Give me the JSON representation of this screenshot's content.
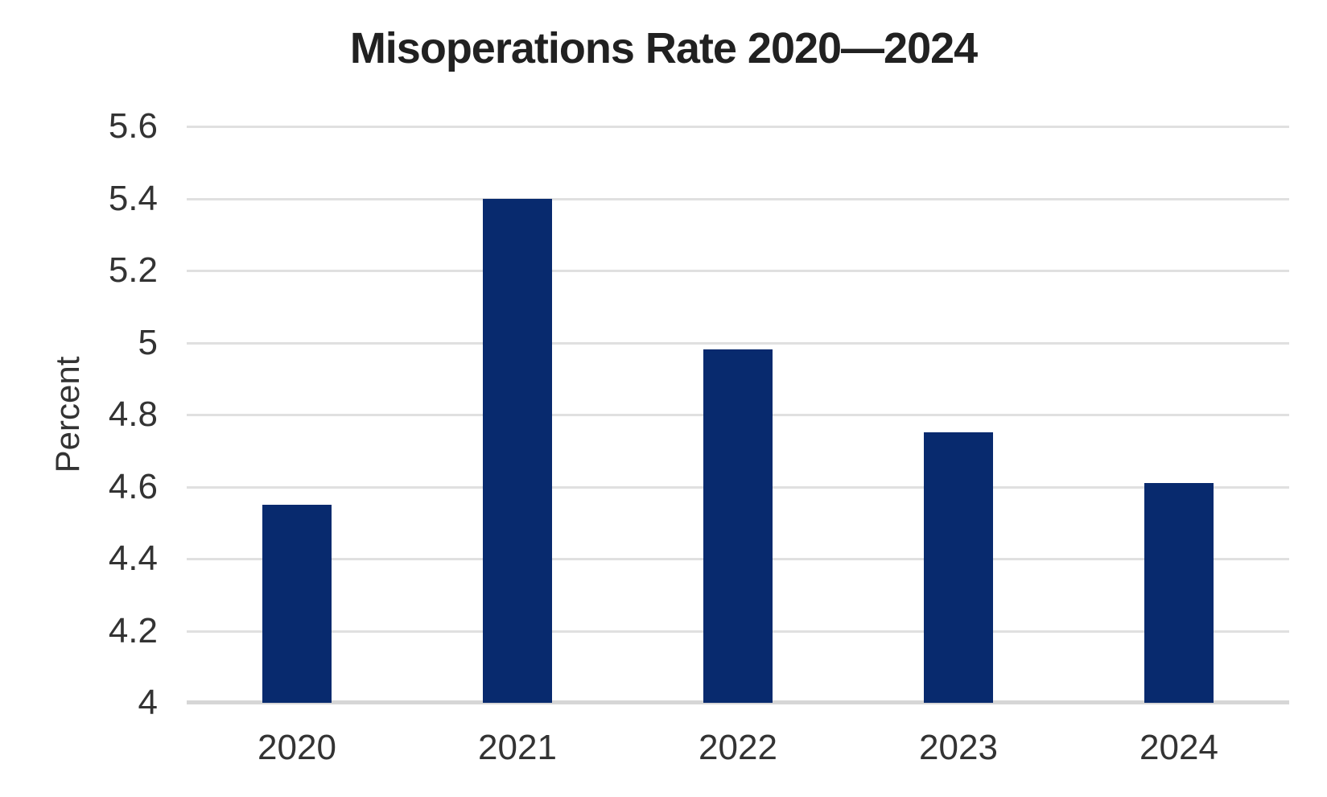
{
  "title": "Misoperations Rate 2020—2024",
  "colors": {
    "background": "#ffffff",
    "bar": "#082a6e",
    "gridline": "#e0e0e0",
    "axis_line": "#d6d6d6",
    "title_text": "#212121",
    "tick_text": "#333333"
  },
  "chart_data": {
    "type": "bar",
    "title": "Misoperations Rate 2020—2024",
    "xlabel": "",
    "ylabel": "Percent",
    "categories": [
      "2020",
      "2021",
      "2022",
      "2023",
      "2024"
    ],
    "values": [
      4.55,
      5.4,
      4.98,
      4.75,
      4.61
    ],
    "ylim": [
      4,
      5.6
    ],
    "yticks": [
      {
        "value": 4,
        "label": "4"
      },
      {
        "value": 4.2,
        "label": "4.2"
      },
      {
        "value": 4.4,
        "label": "4.4"
      },
      {
        "value": 4.6,
        "label": "4.6"
      },
      {
        "value": 4.8,
        "label": "4.8"
      },
      {
        "value": 5,
        "label": "5"
      },
      {
        "value": 5.2,
        "label": "5.2"
      },
      {
        "value": 5.4,
        "label": "5.4"
      },
      {
        "value": 5.6,
        "label": "5.6"
      }
    ],
    "grid": "horizontal",
    "legend": "none",
    "bar_color": "#082a6e"
  }
}
